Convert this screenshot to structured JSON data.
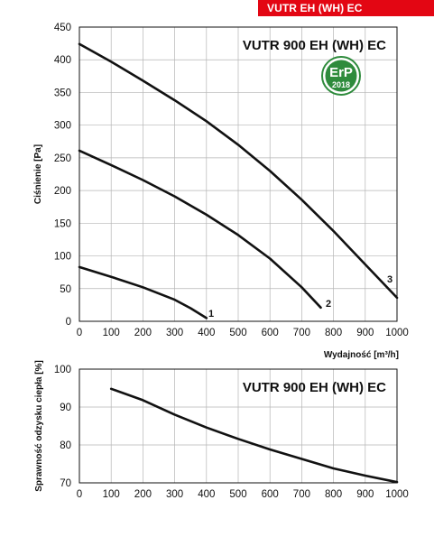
{
  "header": {
    "badge": "VUTR EH (WH) EC"
  },
  "erp_badge": {
    "text": "ErP",
    "year": "2018",
    "color": "#2e8b3c"
  },
  "chart_data": [
    {
      "type": "line",
      "title": "VUTR 900 EH (WH) EC",
      "xlabel": "Wydajność [m³/h]",
      "ylabel": "Ciśnienie [Pa]",
      "xlim": [
        0,
        1000
      ],
      "ylim": [
        0,
        450
      ],
      "xticks": [
        "0",
        "100",
        "200",
        "300",
        "400",
        "500",
        "600",
        "700",
        "800",
        "900",
        "1000"
      ],
      "yticks": [
        "0",
        "50",
        "100",
        "150",
        "200",
        "250",
        "300",
        "350",
        "400",
        "450"
      ],
      "grid": true,
      "series": [
        {
          "name": "1",
          "x": [
            0,
            100,
            200,
            300,
            350,
            400
          ],
          "y": [
            83,
            68,
            52,
            33,
            20,
            5
          ]
        },
        {
          "name": "2",
          "x": [
            0,
            100,
            200,
            300,
            400,
            500,
            600,
            700,
            760
          ],
          "y": [
            261,
            239,
            216,
            191,
            163,
            132,
            96,
            52,
            21
          ]
        },
        {
          "name": "3",
          "x": [
            0,
            100,
            200,
            300,
            400,
            500,
            600,
            700,
            800,
            900,
            1000
          ],
          "y": [
            424,
            397,
            368,
            338,
            306,
            270,
            230,
            186,
            138,
            87,
            36
          ]
        }
      ]
    },
    {
      "type": "line",
      "title": "VUTR 900 EH (WH) EC",
      "xlabel": "",
      "ylabel": "Sprawność odzysku ciepła [%]",
      "xlim": [
        0,
        1000
      ],
      "ylim": [
        70,
        100
      ],
      "xticks": [
        "0",
        "100",
        "200",
        "300",
        "400",
        "500",
        "600",
        "700",
        "800",
        "900",
        "1000"
      ],
      "yticks": [
        "70",
        "80",
        "90",
        "100"
      ],
      "grid": true,
      "series": [
        {
          "x": [
            100,
            200,
            300,
            400,
            500,
            600,
            700,
            800,
            900,
            1000
          ],
          "y": [
            94.8,
            91.8,
            88,
            84.6,
            81.6,
            78.8,
            76.3,
            73.8,
            71.9,
            70.2
          ]
        }
      ]
    }
  ]
}
